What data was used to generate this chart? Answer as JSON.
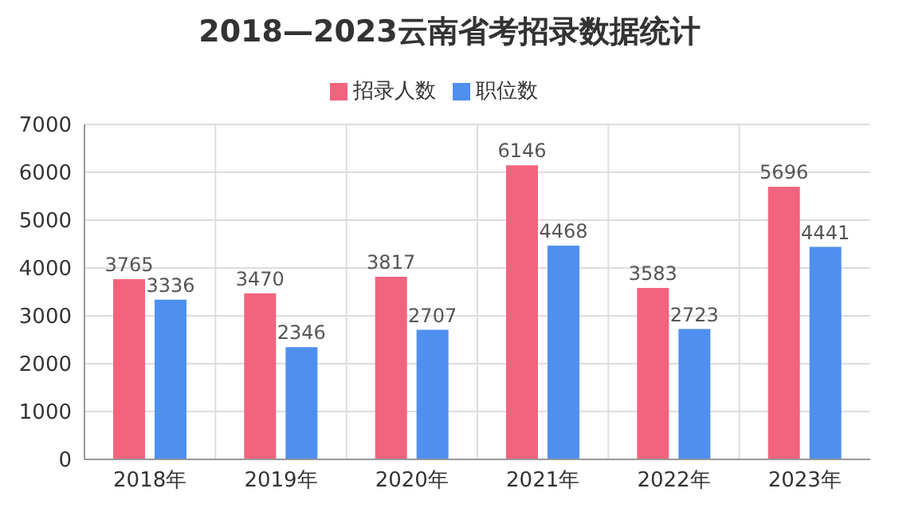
{
  "chart_data": {
    "type": "bar",
    "title": "2018—2023云南省考招录数据统计",
    "categories": [
      "2018年",
      "2019年",
      "2020年",
      "2021年",
      "2022年",
      "2023年"
    ],
    "series": [
      {
        "name": "招录人数",
        "color": "#f2637e",
        "values": [
          3765,
          3470,
          3817,
          6146,
          3583,
          5696
        ]
      },
      {
        "name": "职位数",
        "color": "#4f8ff0",
        "values": [
          3336,
          2346,
          2707,
          4468,
          2723,
          4441
        ]
      }
    ],
    "ylim": [
      0,
      7000
    ],
    "yticks": [
      0,
      1000,
      2000,
      3000,
      4000,
      5000,
      6000,
      7000
    ],
    "grid": true,
    "legend": "top",
    "data_labels": true
  }
}
